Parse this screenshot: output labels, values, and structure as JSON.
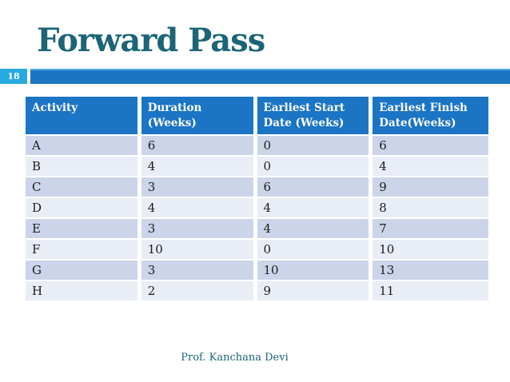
{
  "slide": {
    "title": "Forward Pass",
    "page_number": "18",
    "footer": "Prof. Kanchana Devi"
  },
  "table": {
    "columns": [
      {
        "label": "Activity",
        "lines": [
          "Activity"
        ]
      },
      {
        "label": "Duration (Weeks)",
        "lines": [
          "Duration",
          "(Weeks)"
        ]
      },
      {
        "label": "Earliest Start Date (Weeks)",
        "lines": [
          "Earliest Start",
          "Date (Weeks)"
        ]
      },
      {
        "label": "Earliest Finish Date(Weeks)",
        "lines": [
          "Earliest Finish",
          "Date(Weeks)"
        ]
      }
    ],
    "rows": [
      {
        "activity": "A",
        "duration": "6",
        "earliest_start": "0",
        "earliest_finish": "6"
      },
      {
        "activity": "B",
        "duration": "4",
        "earliest_start": "0",
        "earliest_finish": "4"
      },
      {
        "activity": "C",
        "duration": "3",
        "earliest_start": "6",
        "earliest_finish": "9"
      },
      {
        "activity": "D",
        "duration": "4",
        "earliest_start": "4",
        "earliest_finish": "8"
      },
      {
        "activity": "E",
        "duration": "3",
        "earliest_start": "4",
        "earliest_finish": "7"
      },
      {
        "activity": "F",
        "duration": "10",
        "earliest_start": "0",
        "earliest_finish": "10"
      },
      {
        "activity": "G",
        "duration": "3",
        "earliest_start": "10",
        "earliest_finish": "13"
      },
      {
        "activity": "H",
        "duration": "2",
        "earliest_start": "9",
        "earliest_finish": "11"
      }
    ]
  },
  "colors": {
    "title_teal": "#1c6477",
    "bar_blue": "#1b74c4",
    "bar_blue_top_edge": "#55a8de",
    "page_badge_cyan": "#29a9e1",
    "table_header_blue": "#1b74c4",
    "row_band_dark": "#cbd4e9",
    "row_band_light": "#e9edf6",
    "cell_text": "#1c1c1c"
  }
}
